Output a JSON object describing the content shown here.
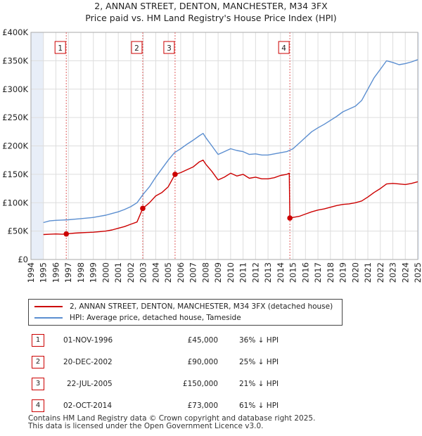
{
  "title_line1": "2, ANNAN STREET, DENTON, MANCHESTER, M34 3FX",
  "title_line2": "Price paid vs. HM Land Registry's House Price Index (HPI)",
  "chart_data": {
    "type": "line",
    "title": "2, ANNAN STREET, DENTON, MANCHESTER, M34 3FX — Price paid vs. HM Land Registry's House Price Index (HPI)",
    "xlim": [
      1995,
      2025
    ],
    "ylim": [
      0,
      400000
    ],
    "y_ticks": [
      0,
      50000,
      100000,
      150000,
      200000,
      250000,
      300000,
      350000,
      400000
    ],
    "y_tick_labels": [
      "£0",
      "£50K",
      "£100K",
      "£150K",
      "£200K",
      "£250K",
      "£300K",
      "£350K",
      "£400K"
    ],
    "x_tick_labels": [
      "1994",
      "1995",
      "1996",
      "1997",
      "1998",
      "1999",
      "2000",
      "2001",
      "2002",
      "2003",
      "2004",
      "2005",
      "2006",
      "2007",
      "2008",
      "2009",
      "2010",
      "2011",
      "2012",
      "2013",
      "2014",
      "2015",
      "2016",
      "2017",
      "2018",
      "2019",
      "2020",
      "2021",
      "2022",
      "2023",
      "2024",
      "2025"
    ],
    "colors": {
      "price": "#cc0000",
      "hpi": "#5b8ed0",
      "event_line": "#e06060",
      "shade": "#e8eef8"
    },
    "series": [
      {
        "name": "2, ANNAN STREET, DENTON, MANCHESTER, M34 3FX (detached house)",
        "color": "#cc0000",
        "points": [
          [
            1995.0,
            44000
          ],
          [
            1995.5,
            44500
          ],
          [
            1996.0,
            45000
          ],
          [
            1996.5,
            44500
          ],
          [
            1996.83,
            45000
          ],
          [
            1997.0,
            45500
          ],
          [
            1997.5,
            46500
          ],
          [
            1998.0,
            47000
          ],
          [
            1998.5,
            47500
          ],
          [
            1999.0,
            48000
          ],
          [
            1999.5,
            49000
          ],
          [
            2000.0,
            50000
          ],
          [
            2000.5,
            52000
          ],
          [
            2001.0,
            55000
          ],
          [
            2001.5,
            58000
          ],
          [
            2002.0,
            62000
          ],
          [
            2002.5,
            66000
          ],
          [
            2002.96,
            90000
          ],
          [
            2003.5,
            100000
          ],
          [
            2004.0,
            112000
          ],
          [
            2004.5,
            118000
          ],
          [
            2005.0,
            128000
          ],
          [
            2005.55,
            150000
          ],
          [
            2006.0,
            153000
          ],
          [
            2006.5,
            158000
          ],
          [
            2007.0,
            163000
          ],
          [
            2007.5,
            172000
          ],
          [
            2007.8,
            175000
          ],
          [
            2008.0,
            168000
          ],
          [
            2008.5,
            155000
          ],
          [
            2009.0,
            140000
          ],
          [
            2009.5,
            145000
          ],
          [
            2010.0,
            152000
          ],
          [
            2010.5,
            147000
          ],
          [
            2011.0,
            150000
          ],
          [
            2011.5,
            143000
          ],
          [
            2012.0,
            145000
          ],
          [
            2012.5,
            142000
          ],
          [
            2013.0,
            142000
          ],
          [
            2013.5,
            144000
          ],
          [
            2014.0,
            148000
          ],
          [
            2014.5,
            150000
          ],
          [
            2014.7,
            152000
          ],
          [
            2014.75,
            73000
          ],
          [
            2015.0,
            74000
          ],
          [
            2015.5,
            76000
          ],
          [
            2016.0,
            80000
          ],
          [
            2016.5,
            84000
          ],
          [
            2017.0,
            87000
          ],
          [
            2017.5,
            89000
          ],
          [
            2018.0,
            92000
          ],
          [
            2018.5,
            95000
          ],
          [
            2019.0,
            97000
          ],
          [
            2019.5,
            98000
          ],
          [
            2020.0,
            100000
          ],
          [
            2020.5,
            103000
          ],
          [
            2021.0,
            110000
          ],
          [
            2021.5,
            118000
          ],
          [
            2022.0,
            125000
          ],
          [
            2022.5,
            133000
          ],
          [
            2023.0,
            134000
          ],
          [
            2023.5,
            133000
          ],
          [
            2024.0,
            132000
          ],
          [
            2024.5,
            134000
          ],
          [
            2025.0,
            137000
          ]
        ]
      },
      {
        "name": "HPI: Average price, detached house, Tameside",
        "color": "#5b8ed0",
        "points": [
          [
            1995.0,
            65000
          ],
          [
            1995.5,
            68000
          ],
          [
            1996.0,
            69000
          ],
          [
            1996.5,
            69500
          ],
          [
            1997.0,
            70000
          ],
          [
            1997.5,
            71000
          ],
          [
            1998.0,
            72000
          ],
          [
            1998.5,
            73000
          ],
          [
            1999.0,
            74000
          ],
          [
            1999.5,
            76000
          ],
          [
            2000.0,
            78000
          ],
          [
            2000.5,
            81000
          ],
          [
            2001.0,
            84000
          ],
          [
            2001.5,
            88000
          ],
          [
            2002.0,
            93000
          ],
          [
            2002.5,
            100000
          ],
          [
            2003.0,
            115000
          ],
          [
            2003.5,
            128000
          ],
          [
            2004.0,
            145000
          ],
          [
            2004.5,
            160000
          ],
          [
            2005.0,
            175000
          ],
          [
            2005.5,
            188000
          ],
          [
            2006.0,
            195000
          ],
          [
            2006.5,
            203000
          ],
          [
            2007.0,
            210000
          ],
          [
            2007.5,
            218000
          ],
          [
            2007.8,
            222000
          ],
          [
            2008.0,
            215000
          ],
          [
            2008.5,
            200000
          ],
          [
            2009.0,
            185000
          ],
          [
            2009.5,
            190000
          ],
          [
            2010.0,
            195000
          ],
          [
            2010.5,
            192000
          ],
          [
            2011.0,
            190000
          ],
          [
            2011.5,
            185000
          ],
          [
            2012.0,
            186000
          ],
          [
            2012.5,
            184000
          ],
          [
            2013.0,
            184000
          ],
          [
            2013.5,
            186000
          ],
          [
            2014.0,
            188000
          ],
          [
            2014.5,
            190000
          ],
          [
            2015.0,
            195000
          ],
          [
            2015.5,
            205000
          ],
          [
            2016.0,
            215000
          ],
          [
            2016.5,
            225000
          ],
          [
            2017.0,
            232000
          ],
          [
            2017.5,
            238000
          ],
          [
            2018.0,
            245000
          ],
          [
            2018.5,
            252000
          ],
          [
            2019.0,
            260000
          ],
          [
            2019.5,
            265000
          ],
          [
            2020.0,
            270000
          ],
          [
            2020.5,
            280000
          ],
          [
            2021.0,
            300000
          ],
          [
            2021.5,
            320000
          ],
          [
            2022.0,
            335000
          ],
          [
            2022.5,
            350000
          ],
          [
            2023.0,
            347000
          ],
          [
            2023.5,
            343000
          ],
          [
            2024.0,
            345000
          ],
          [
            2024.5,
            348000
          ],
          [
            2025.0,
            352000
          ]
        ]
      }
    ],
    "events": [
      {
        "label": "1",
        "x": 1996.83,
        "y": 45000
      },
      {
        "label": "2",
        "x": 2002.96,
        "y": 90000
      },
      {
        "label": "3",
        "x": 2005.55,
        "y": 150000
      },
      {
        "label": "4",
        "x": 2014.75,
        "y": 73000
      }
    ],
    "shaded_ranges": [
      [
        1994.0,
        1995.0
      ],
      [
        2025.0,
        2025.1
      ]
    ]
  },
  "legend": {
    "items": [
      {
        "label": "2, ANNAN STREET, DENTON, MANCHESTER, M34 3FX (detached house)",
        "color": "#cc0000"
      },
      {
        "label": "HPI: Average price, detached house, Tameside",
        "color": "#5b8ed0"
      }
    ]
  },
  "sales": [
    {
      "num": "1",
      "date": "01-NOV-1996",
      "price": "£45,000",
      "hpi": "36% ↓ HPI"
    },
    {
      "num": "2",
      "date": "20-DEC-2002",
      "price": "£90,000",
      "hpi": "25% ↓ HPI"
    },
    {
      "num": "3",
      "date": "22-JUL-2005",
      "price": "£150,000",
      "hpi": "21% ↓ HPI"
    },
    {
      "num": "4",
      "date": "02-OCT-2014",
      "price": "£73,000",
      "hpi": "61% ↓ HPI"
    }
  ],
  "footer_line1": "Contains HM Land Registry data © Crown copyright and database right 2025.",
  "footer_line2": "This data is licensed under the Open Government Licence v3.0."
}
